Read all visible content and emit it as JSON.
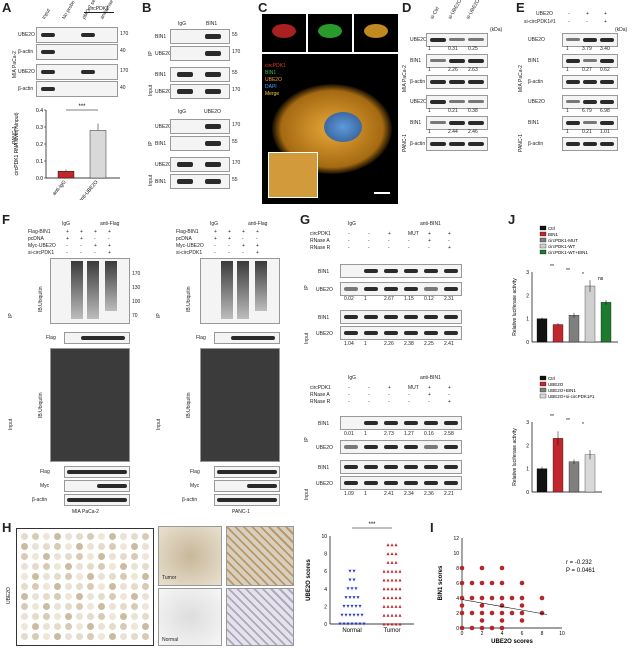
{
  "panels": {
    "A": "A",
    "B": "B",
    "C": "C",
    "D": "D",
    "E": "E",
    "F": "F",
    "G": "G",
    "H": "H",
    "I": "I",
    "J": "J"
  },
  "common": {
    "kda": "(kDa)",
    "ip": "IP",
    "input": "Input",
    "mia": "MIA PaCa-2",
    "panc": "PANC-1",
    "ube2o": "UBE2O",
    "bin1": "BIN1",
    "bactin": "β-actin",
    "igg": "IgG",
    "flag": "Flag",
    "myc": "Myc",
    "ubiquitin": "IB:Ubiquitin",
    "antiflag": "anti-Flag",
    "antibin1": "anti-BIN1"
  },
  "A": {
    "cols": [
      "Input",
      "No probe",
      "pMO-7 sense",
      "antisense"
    ],
    "bracket": "circPDK1",
    "mw": [
      "170",
      "40",
      "170",
      "40"
    ],
    "chart_data": {
      "type": "bar",
      "categories": [
        "anti-IgG",
        "anti-UBE2O"
      ],
      "values": [
        0.04,
        0.28
      ],
      "errors": [
        0.01,
        0.04
      ],
      "ylabel": "circPDK1 RNA level(%Input)",
      "ylim": [
        0,
        0.4
      ],
      "yticks": [
        "0.0",
        "0.1",
        "0.2",
        "0.3",
        "0.4"
      ],
      "sig": "***",
      "colors": [
        "#c0282d",
        "#d9d9d9"
      ]
    }
  },
  "B": {
    "top_cols": [
      "IgG",
      "BIN1"
    ],
    "bottom_cols": [
      "IgG",
      "UBE2O"
    ],
    "mw": [
      "55",
      "170",
      "55",
      "170",
      "170",
      "55",
      "170",
      "55"
    ]
  },
  "C": {
    "legend": [
      "circPDK1",
      "BIN1",
      "UBE2O",
      "DAPI",
      "Merge"
    ],
    "legend_colors": [
      "#e0352b",
      "#35c24a",
      "#f0a030",
      "#4aa3ff",
      "#f5d020"
    ]
  },
  "D": {
    "cols": [
      "si-Ctrl",
      "si-UBE2O#1",
      "si-UBE2O#2"
    ],
    "mia_q1": [
      "1",
      "0.31",
      "0.25"
    ],
    "mia_q2": [
      "1",
      "2.26",
      "2.63"
    ],
    "panc_q1": [
      "1",
      "0.21",
      "0.38"
    ],
    "panc_q2": [
      "1",
      "2.44",
      "2.46"
    ]
  },
  "E": {
    "row1": [
      "UBE2O",
      "-",
      "+",
      "+"
    ],
    "row2": [
      "si-circPDK1#1",
      "-",
      "-",
      "+"
    ],
    "mia_q1": [
      "1",
      "3.79",
      "3.40"
    ],
    "mia_q2": [
      "1",
      "0.27",
      "0.62"
    ],
    "panc_q1": [
      "1",
      "6.79",
      "6.98"
    ],
    "panc_q2": [
      "1",
      "0.21",
      "1.01"
    ]
  },
  "F": {
    "rows": [
      "Flag-BIN1",
      "pcDNA",
      "Myc-UBE2O",
      "si-circPDK1"
    ],
    "vals": [
      [
        "+",
        "+",
        "+",
        "+"
      ],
      [
        "+",
        "+",
        "-",
        "-"
      ],
      [
        "-",
        "-",
        "+",
        "+"
      ],
      [
        "-",
        "-",
        "-",
        "+"
      ]
    ],
    "mw_ub": [
      "170",
      "130",
      "100",
      "70"
    ],
    "bottom": [
      "MIA PaCa-2",
      "PANC-1"
    ]
  },
  "G": {
    "rows": [
      "circPDK1",
      "RNase A",
      "RNase R"
    ],
    "vals": [
      [
        "-",
        "-",
        "+",
        "MUT",
        "+",
        "+"
      ],
      [
        "-",
        "-",
        "-",
        "-",
        "+",
        "-"
      ],
      [
        "-",
        "-",
        "-",
        "-",
        "-",
        "+"
      ]
    ],
    "q_top": [
      "0.02",
      "1",
      "2.67",
      "1.15",
      "0.12",
      "2.31"
    ],
    "q_top2": [
      "1.04",
      "1",
      "2.26",
      "2.38",
      "2.25",
      "2.41"
    ],
    "q_bot": [
      "0.01",
      "1",
      "2.73",
      "1.27",
      "0.16",
      "2.58"
    ],
    "q_bot2": [
      "1.09",
      "1",
      "2.41",
      "2.34",
      "2.36",
      "2.21"
    ]
  },
  "H": {
    "tumor": "Tumor",
    "normal": "Normal",
    "side": "UBE2O",
    "chart_data": {
      "type": "scatter",
      "categories": [
        "Normal",
        "Tumor"
      ],
      "ylabel": "UBE2O scores",
      "ylim": [
        0,
        10
      ],
      "yticks": [
        "0",
        "2",
        "4",
        "6",
        "8",
        "10"
      ],
      "sig": "***",
      "colors": [
        "#2b3ec2",
        "#c0282d"
      ]
    }
  },
  "I": {
    "chart_data": {
      "type": "scatter",
      "xlabel": "UBE2O scores",
      "ylabel": "BIN1 scores",
      "xlim": [
        0,
        10
      ],
      "ylim": [
        0,
        12
      ],
      "xticks": [
        "0",
        "2",
        "4",
        "6",
        "8",
        "10"
      ],
      "yticks": [
        "0",
        "2",
        "4",
        "6",
        "8",
        "10",
        "12"
      ],
      "r": "r = -0.232",
      "p": "P = 0.0461",
      "points": [
        [
          0,
          2
        ],
        [
          0,
          3
        ],
        [
          0,
          4
        ],
        [
          0,
          6
        ],
        [
          0,
          8
        ],
        [
          1,
          2
        ],
        [
          1,
          4
        ],
        [
          1,
          6
        ],
        [
          2,
          0
        ],
        [
          2,
          2
        ],
        [
          2,
          3
        ],
        [
          2,
          4
        ],
        [
          2,
          6
        ],
        [
          2,
          8
        ],
        [
          3,
          2
        ],
        [
          3,
          4
        ],
        [
          3,
          6
        ],
        [
          4,
          0
        ],
        [
          4,
          2
        ],
        [
          4,
          3
        ],
        [
          4,
          4
        ],
        [
          4,
          6
        ],
        [
          4,
          8
        ],
        [
          5,
          2
        ],
        [
          5,
          4
        ],
        [
          6,
          1
        ],
        [
          6,
          2
        ],
        [
          6,
          3
        ],
        [
          6,
          4
        ],
        [
          6,
          6
        ],
        [
          8,
          2
        ],
        [
          8,
          4
        ],
        [
          1,
          0
        ],
        [
          3,
          0
        ],
        [
          0,
          0
        ],
        [
          2,
          1
        ],
        [
          4,
          1
        ]
      ]
    }
  },
  "J": {
    "chart_data": [
      {
        "type": "bar",
        "legend": [
          "Ctrl",
          "BIN1",
          "circPDK1-MUT",
          "circPDK1-WT",
          "circPDK1-WT+BIN1"
        ],
        "values": [
          1.0,
          0.75,
          1.15,
          2.4,
          1.7
        ],
        "errors": [
          0.05,
          0.06,
          0.1,
          0.25,
          0.1
        ],
        "colors": [
          "#111111",
          "#c0282d",
          "#7f7f7f",
          "#cfcfcf",
          "#1e7a2c"
        ],
        "ylabel": "Relative luciferase activity",
        "ylim": [
          0,
          3
        ],
        "yticks": [
          "0",
          "1",
          "2",
          "3"
        ],
        "sig": [
          "**",
          "**",
          "*",
          "ns"
        ]
      },
      {
        "type": "bar",
        "legend": [
          "Ctrl",
          "UBE2O",
          "UBE2O+BIN1",
          "UBE2O+si-circPDK1#1"
        ],
        "values": [
          1.0,
          2.3,
          1.3,
          1.6
        ],
        "errors": [
          0.08,
          0.3,
          0.1,
          0.2
        ],
        "colors": [
          "#111111",
          "#c0282d",
          "#7f7f7f",
          "#d9d9d9"
        ],
        "ylabel": "Relative luciferase activity",
        "ylim": [
          0,
          3
        ],
        "yticks": [
          "0",
          "1",
          "2",
          "3"
        ],
        "sig": [
          "**",
          "**",
          "*"
        ]
      }
    ]
  }
}
